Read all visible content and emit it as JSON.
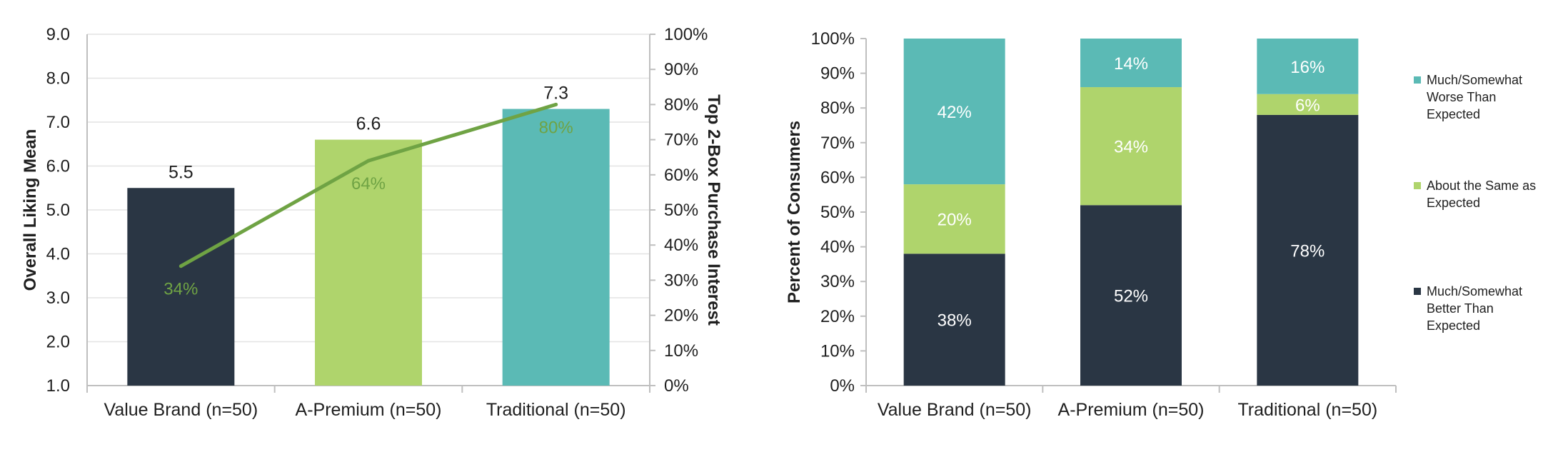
{
  "chart_data": [
    {
      "type": "bar",
      "categories": [
        "Value Brand (n=50)",
        "A-Premium (n=50)",
        "Traditional (n=50)"
      ],
      "values": [
        5.5,
        6.6,
        7.3
      ],
      "value_labels": [
        "5.5",
        "6.6",
        "7.3"
      ],
      "bar_colors": [
        "#2a3644",
        "#afd46c",
        "#5bbab5"
      ],
      "ylabel": "Overall Liking Mean",
      "ylim": [
        1.0,
        9.0
      ],
      "yticks": [
        "1.0",
        "2.0",
        "3.0",
        "4.0",
        "5.0",
        "6.0",
        "7.0",
        "8.0",
        "9.0"
      ],
      "y2label": "Top 2-Box Purchase Interest",
      "y2lim": [
        0,
        100
      ],
      "y2ticks": [
        "0%",
        "10%",
        "20%",
        "30%",
        "40%",
        "50%",
        "60%",
        "70%",
        "80%",
        "90%",
        "100%"
      ],
      "line_series": {
        "values": [
          34,
          64,
          80
        ],
        "labels": [
          "34%",
          "64%",
          "80%"
        ],
        "color": "#6fa344"
      },
      "grid": true
    },
    {
      "type": "bar",
      "stacked": true,
      "categories": [
        "Value Brand (n=50)",
        "A-Premium (n=50)",
        "Traditional (n=50)"
      ],
      "ylabel": "Percent of Consumers",
      "ylim": [
        0,
        100
      ],
      "yticks": [
        "0%",
        "10%",
        "20%",
        "30%",
        "40%",
        "50%",
        "60%",
        "70%",
        "80%",
        "90%",
        "100%"
      ],
      "series": [
        {
          "name": "Much/Somewhat Better Than Expected",
          "legend_lines": [
            "Much/Somewhat",
            "Better Than",
            "Expected"
          ],
          "color": "#2a3644",
          "values": [
            38,
            52,
            78
          ],
          "labels": [
            "38%",
            "52%",
            "78%"
          ]
        },
        {
          "name": "About the Same as Expected",
          "legend_lines": [
            "About the Same as",
            "Expected"
          ],
          "color": "#afd46c",
          "values": [
            20,
            34,
            6
          ],
          "labels": [
            "20%",
            "34%",
            "6%"
          ]
        },
        {
          "name": "Much/Somewhat Worse Than Expected",
          "legend_lines": [
            "Much/Somewhat",
            "Worse Than",
            "Expected"
          ],
          "color": "#5bbab5",
          "values": [
            42,
            14,
            16
          ],
          "labels": [
            "42%",
            "14%",
            "16%"
          ]
        }
      ],
      "legend": "right",
      "grid": false
    }
  ]
}
